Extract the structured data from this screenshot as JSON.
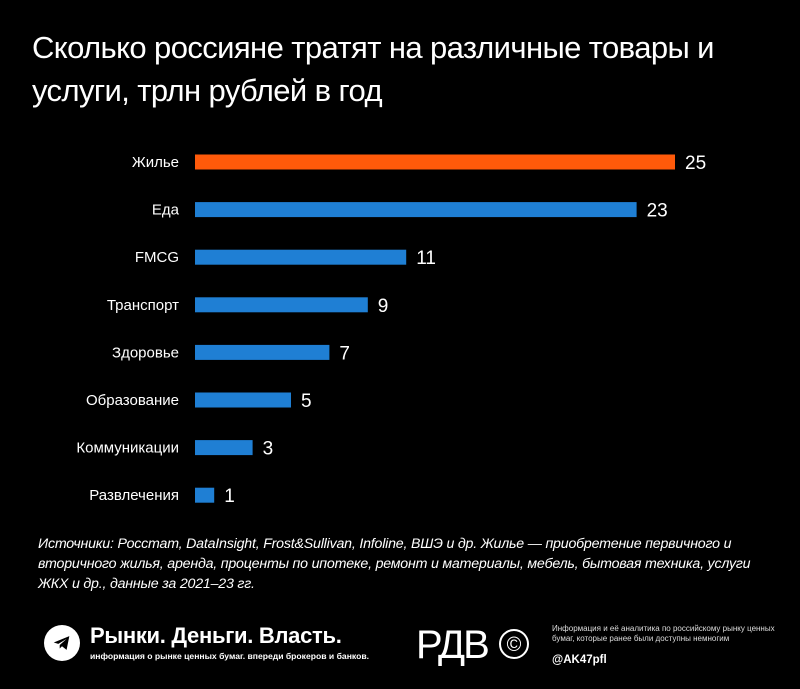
{
  "title": "Сколько россияне тратят на различные товары и услуги, трлн рублей в год",
  "chart_data": {
    "type": "bar",
    "orientation": "horizontal",
    "title": "Сколько россияне тратят на различные товары и услуги, трлн рублей в год",
    "categories": [
      "Жилье",
      "Еда",
      "FMCG",
      "Транспорт",
      "Здоровье",
      "Образование",
      "Коммуникации",
      "Развлечения"
    ],
    "values": [
      25,
      23,
      11,
      9,
      7,
      5,
      3,
      1
    ],
    "value_labels": [
      "25",
      "23",
      "11",
      "9",
      "7",
      "5",
      "3",
      "1"
    ],
    "highlight_category": "Жилье",
    "colors": {
      "default": "#1f7fd4",
      "highlight": "#ff5a0a",
      "background": "#000000"
    },
    "grid": false,
    "legend": "none"
  },
  "source_note": "Источники: Росстат, DataInsight, Frost&Sullivan, Infoline, ВШЭ и др. Жилье — приобретение первичного и вторичного жилья, аренда, проценты по ипотеке, ремонт и материалы, мебель, бытовая техника, услуги ЖКХ и др., данные за 2021–23 гг.",
  "footer": {
    "telegram_icon": "telegram-icon",
    "brand_title": "Рынки. Деньги. Власть.",
    "brand_subtitle": "информация о рынке ценных бумаг. впереди брокеров и банков.",
    "logo_text": "РДВ",
    "logo_symbol": "©",
    "note": "Информация и её аналитика по российскому рынку ценных бумаг, которые ранее были доступны немногим",
    "handle": "@AK47pfl"
  }
}
